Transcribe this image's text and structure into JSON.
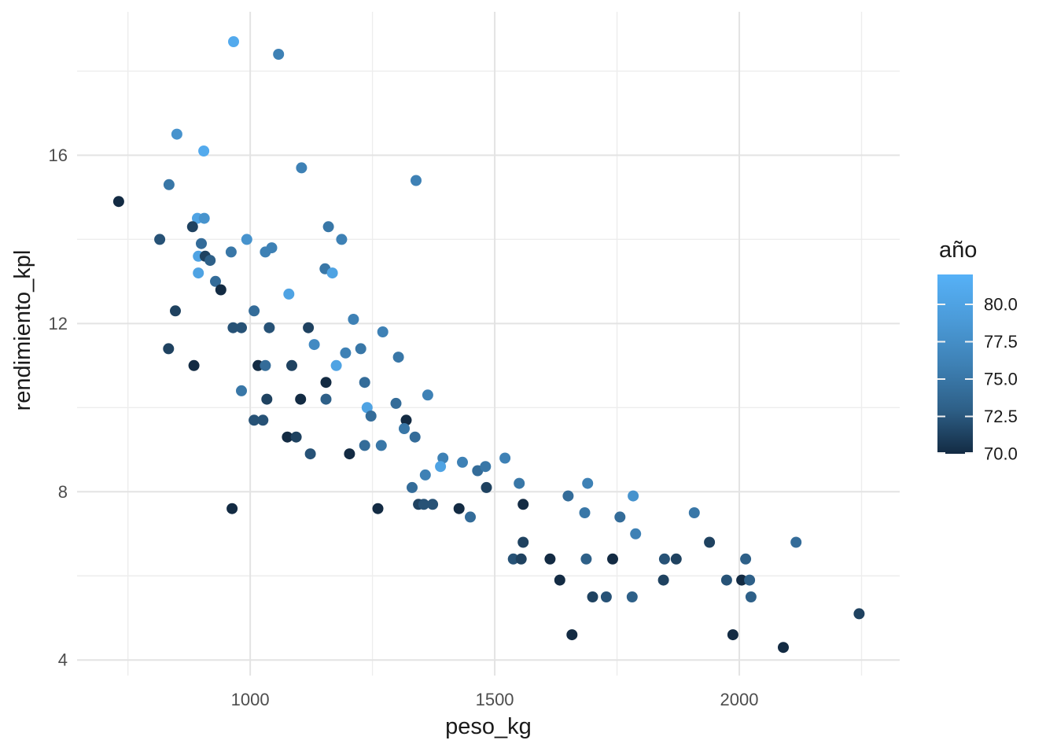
{
  "chart_data": {
    "type": "scatter",
    "title": "",
    "xlabel": "peso_kg",
    "ylabel": "rendimiento_kpl",
    "x_domain": [
      646,
      2328
    ],
    "y_domain": [
      3.63,
      19.41
    ],
    "x_ticks": [
      1000,
      1500,
      2000
    ],
    "x_tick_labels": [
      "1000",
      "1500",
      "2000"
    ],
    "x_minor_ticks": [
      750,
      1250,
      1750,
      2250
    ],
    "y_ticks": [
      16,
      12,
      8,
      4
    ],
    "y_tick_labels": [
      "16",
      "12",
      "8",
      "4"
    ],
    "y_minor_ticks": [
      6,
      10,
      14,
      18
    ],
    "grid": true,
    "background_color": "#ffffff",
    "grid_major_color": "#e3e3e3",
    "grid_minor_color": "#ededed",
    "point_radius": 7,
    "legend": {
      "title": "año",
      "position": "right",
      "tick_values": [
        80.0,
        77.5,
        75.0,
        72.5,
        70.0
      ],
      "tick_labels": [
        "80.0",
        "77.5",
        "75.0",
        "72.5",
        "70.0"
      ],
      "domain": [
        70,
        82
      ],
      "color_low": "#132B43",
      "color_high": "#56B1F7"
    },
    "series_name": "año",
    "points_format": [
      "peso_kg",
      "rendimiento_kpl",
      "año"
    ],
    "points": [
      [
        966,
        18.7,
        81
      ],
      [
        1058,
        18.4,
        76
      ],
      [
        850,
        16.5,
        78
      ],
      [
        905,
        16.1,
        81
      ],
      [
        834,
        15.3,
        75
      ],
      [
        731,
        14.9,
        70
      ],
      [
        892,
        14.5,
        80
      ],
      [
        906,
        14.5,
        78
      ],
      [
        882,
        14.3,
        71
      ],
      [
        815,
        14.0,
        72
      ],
      [
        900,
        13.9,
        74
      ],
      [
        993,
        14.0,
        78
      ],
      [
        894,
        13.6,
        80
      ],
      [
        908,
        13.6,
        71
      ],
      [
        918,
        13.5,
        73
      ],
      [
        961,
        13.7,
        75
      ],
      [
        1031,
        13.7,
        76
      ],
      [
        1044,
        13.8,
        76
      ],
      [
        894,
        13.2,
        80
      ],
      [
        929,
        13.0,
        74
      ],
      [
        940,
        12.8,
        70
      ],
      [
        847,
        12.3,
        71
      ],
      [
        1008,
        12.3,
        74
      ],
      [
        965,
        11.9,
        72
      ],
      [
        982,
        11.9,
        72
      ],
      [
        1039,
        11.9,
        72
      ],
      [
        833,
        11.4,
        71
      ],
      [
        885,
        11.0,
        70
      ],
      [
        1016,
        11.0,
        70
      ],
      [
        1031,
        11.0,
        74
      ],
      [
        982,
        10.4,
        75
      ],
      [
        1034,
        10.2,
        71
      ],
      [
        1008,
        9.7,
        72
      ],
      [
        1026,
        9.7,
        72
      ],
      [
        963,
        7.6,
        70
      ],
      [
        1105,
        15.7,
        76
      ],
      [
        1339,
        15.4,
        76
      ],
      [
        1160,
        14.3,
        75
      ],
      [
        1187,
        14.0,
        76
      ],
      [
        1153,
        13.3,
        75
      ],
      [
        1168,
        13.2,
        80
      ],
      [
        1079,
        12.7,
        80
      ],
      [
        1211,
        12.1,
        76
      ],
      [
        1119,
        11.9,
        71
      ],
      [
        1271,
        11.8,
        76
      ],
      [
        1131,
        11.5,
        77
      ],
      [
        1195,
        11.3,
        76
      ],
      [
        1226,
        11.4,
        75
      ],
      [
        1085,
        11.0,
        71
      ],
      [
        1176,
        11.0,
        80
      ],
      [
        1303,
        11.2,
        75
      ],
      [
        1155,
        10.6,
        70
      ],
      [
        1234,
        10.6,
        74
      ],
      [
        1103,
        10.2,
        70
      ],
      [
        1155,
        10.2,
        73
      ],
      [
        1363,
        10.3,
        76
      ],
      [
        1298,
        10.1,
        74
      ],
      [
        1239,
        10.0,
        80
      ],
      [
        1247,
        9.8,
        74
      ],
      [
        1319,
        9.7,
        70
      ],
      [
        1076,
        9.3,
        70
      ],
      [
        1094,
        9.3,
        71
      ],
      [
        1315,
        9.5,
        75
      ],
      [
        1337,
        9.3,
        74
      ],
      [
        1234,
        9.1,
        74
      ],
      [
        1268,
        9.1,
        75
      ],
      [
        1123,
        8.9,
        72
      ],
      [
        1203,
        8.9,
        70
      ],
      [
        1394,
        8.8,
        76
      ],
      [
        1389,
        8.6,
        80
      ],
      [
        1358,
        8.4,
        76
      ],
      [
        1434,
        8.7,
        76
      ],
      [
        1465,
        8.5,
        74
      ],
      [
        1481,
        8.6,
        75
      ],
      [
        1331,
        8.1,
        74
      ],
      [
        1483,
        8.1,
        71
      ],
      [
        1261,
        7.6,
        70
      ],
      [
        1344,
        7.7,
        71
      ],
      [
        1355,
        7.7,
        72
      ],
      [
        1373,
        7.7,
        72
      ],
      [
        1427,
        7.6,
        70
      ],
      [
        1450,
        7.4,
        74
      ],
      [
        1521,
        8.8,
        76
      ],
      [
        1550,
        8.2,
        75
      ],
      [
        1558,
        7.7,
        70
      ],
      [
        1690,
        8.2,
        76
      ],
      [
        1650,
        7.9,
        74
      ],
      [
        1783,
        7.9,
        78
      ],
      [
        1684,
        7.5,
        75
      ],
      [
        1756,
        7.4,
        74
      ],
      [
        1788,
        7.0,
        76
      ],
      [
        1558,
        6.8,
        71
      ],
      [
        1538,
        6.4,
        72
      ],
      [
        1554,
        6.4,
        71
      ],
      [
        1613,
        6.4,
        70
      ],
      [
        1687,
        6.4,
        73
      ],
      [
        1741,
        6.4,
        70
      ],
      [
        1847,
        6.4,
        72
      ],
      [
        1871,
        6.4,
        71
      ],
      [
        1633,
        5.9,
        70
      ],
      [
        1845,
        5.9,
        71
      ],
      [
        1700,
        5.5,
        71
      ],
      [
        1728,
        5.5,
        72
      ],
      [
        1781,
        5.5,
        73
      ],
      [
        1658,
        4.6,
        70
      ],
      [
        1908,
        7.5,
        75
      ],
      [
        1939,
        6.8,
        71
      ],
      [
        2116,
        6.8,
        74
      ],
      [
        2013,
        6.4,
        73
      ],
      [
        1974,
        5.9,
        72
      ],
      [
        2005,
        5.9,
        70
      ],
      [
        2021,
        5.9,
        73
      ],
      [
        2024,
        5.5,
        73
      ],
      [
        2245,
        5.1,
        71
      ],
      [
        1987,
        4.6,
        70
      ],
      [
        2090,
        4.3,
        70
      ]
    ]
  }
}
